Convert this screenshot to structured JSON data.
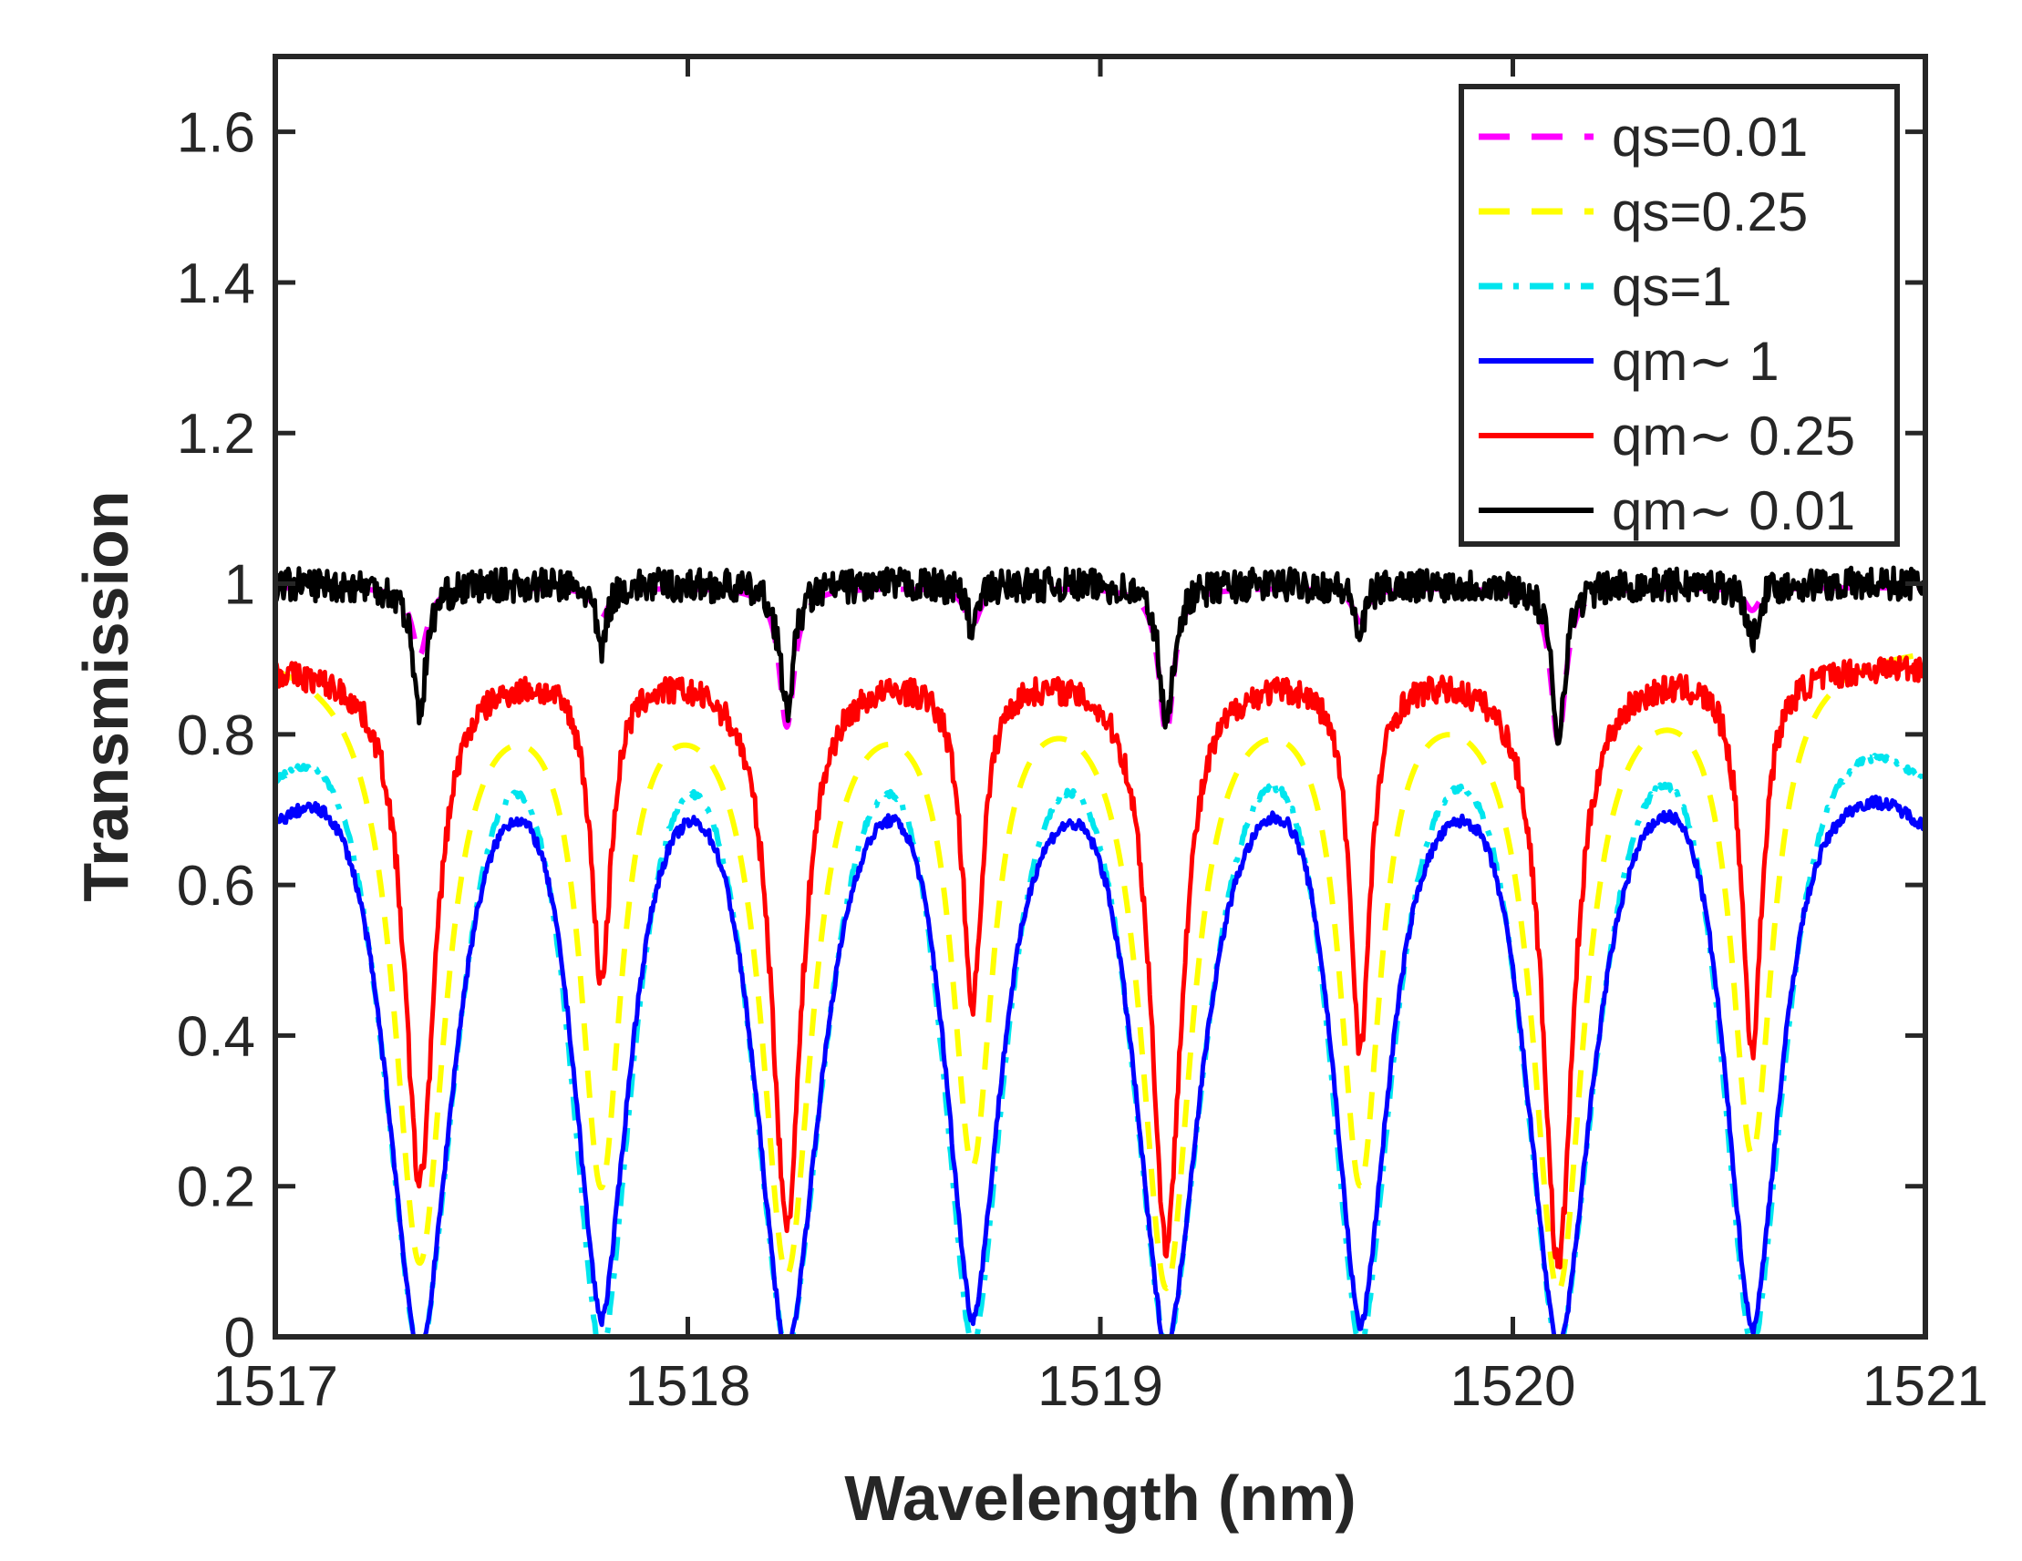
{
  "chart_data": {
    "type": "line",
    "title": "",
    "xlabel": "Wavelength (nm)",
    "ylabel": "Transmission",
    "xlim": [
      1517,
      1521
    ],
    "ylim": [
      0,
      1.7
    ],
    "xticks": [
      1517,
      1518,
      1519,
      1520,
      1521
    ],
    "xtick_labels": [
      "1517",
      "1518",
      "1519",
      "1520",
      "1521"
    ],
    "yticks": [
      0,
      0.2,
      0.4,
      0.6,
      0.8,
      1,
      1.2,
      1.4,
      1.6
    ],
    "ytick_labels": [
      "0",
      "0.2",
      "0.4",
      "0.6",
      "0.8",
      "1",
      "1.2",
      "1.4",
      "1.6"
    ],
    "grid": false,
    "legend_position": "top-right",
    "series": [
      {
        "name": "qs=0.01",
        "label": "qs=0.01",
        "color": "#ff00ff",
        "style": "dashed",
        "kind": "lorentz",
        "base": 0.995,
        "mins": [
          0.905,
          0.955,
          0.81,
          0.945,
          0.8,
          0.95,
          0.79,
          0.965
        ],
        "widths": [
          0.022,
          0.022,
          0.022,
          0.022,
          0.022,
          0.022,
          0.022,
          0.022
        ],
        "noise": 0
      },
      {
        "name": "qs=0.25",
        "label": "qs=0.25",
        "color": "#ffff00",
        "style": "dashed",
        "kind": "lorentz",
        "base": 0.93,
        "mins": [
          0.12,
          0.25,
          0.12,
          0.28,
          0.1,
          0.25,
          0.09,
          0.27
        ],
        "widths": [
          0.075,
          0.06,
          0.075,
          0.06,
          0.075,
          0.06,
          0.075,
          0.06
        ],
        "noise": 0
      },
      {
        "name": "qs=1",
        "label": "qs=1",
        "color": "#00e5ee",
        "style": "dashdot",
        "kind": "broad",
        "base": 0.74,
        "mins": [
          0.0,
          0.0,
          0.0,
          0.0,
          0.0,
          0.0,
          0.0,
          0.0
        ],
        "widths": [
          0.11,
          0.095,
          0.11,
          0.095,
          0.11,
          0.095,
          0.11,
          0.095
        ],
        "noise": 0.004
      },
      {
        "name": "qm~ 1",
        "label": "qm∼ 1",
        "color": "#0000ff",
        "style": "solid",
        "kind": "broad",
        "base": 0.68,
        "mins": [
          0.0,
          0.05,
          0.0,
          0.04,
          0.0,
          0.03,
          0.0,
          0.03
        ],
        "widths": [
          0.1,
          0.085,
          0.1,
          0.085,
          0.1,
          0.085,
          0.1,
          0.085
        ],
        "noise": 0.008
      },
      {
        "name": "qm~ 0.25",
        "label": "qm∼ 0.25",
        "color": "#ff0000",
        "style": "solid",
        "kind": "lorentz",
        "base": 0.895,
        "mins": [
          0.21,
          0.49,
          0.16,
          0.46,
          0.13,
          0.4,
          0.1,
          0.39
        ],
        "widths": [
          0.045,
          0.03,
          0.045,
          0.03,
          0.045,
          0.03,
          0.045,
          0.03
        ],
        "noise": 0.018
      },
      {
        "name": "qm~ 0.01",
        "label": "qm∼ 0.01",
        "color": "#000000",
        "style": "solid",
        "kind": "lorentz",
        "base": 1.0,
        "mins": [
          0.83,
          0.91,
          0.83,
          0.94,
          0.81,
          0.93,
          0.8,
          0.92
        ],
        "widths": [
          0.02,
          0.015,
          0.02,
          0.015,
          0.02,
          0.015,
          0.02,
          0.015
        ],
        "noise": 0.022
      }
    ],
    "resonance_centers": [
      1517.35,
      1517.79,
      1518.24,
      1518.69,
      1519.16,
      1519.63,
      1520.11,
      1520.58
    ]
  }
}
